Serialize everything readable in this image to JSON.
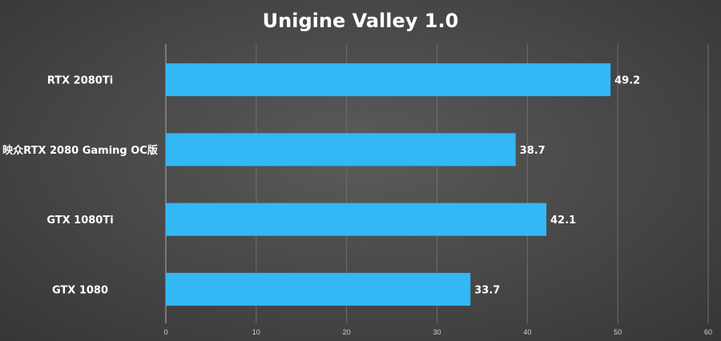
{
  "chart_data": {
    "type": "bar",
    "orientation": "horizontal",
    "title": "Unigine Valley 1.0",
    "categories": [
      "RTX 2080Ti",
      "映众RTX 2080 Gaming OC版",
      "GTX 1080Ti",
      "GTX 1080"
    ],
    "values": [
      49.2,
      38.7,
      42.1,
      33.7
    ],
    "xlim": [
      0,
      60
    ],
    "x_ticks": [
      "0",
      "10",
      "20",
      "30",
      "40",
      "50",
      "60"
    ],
    "grid": true,
    "colors": {
      "bar": "#33b8f5",
      "grid": "#6e6e6e",
      "text": "#ffffff"
    }
  }
}
